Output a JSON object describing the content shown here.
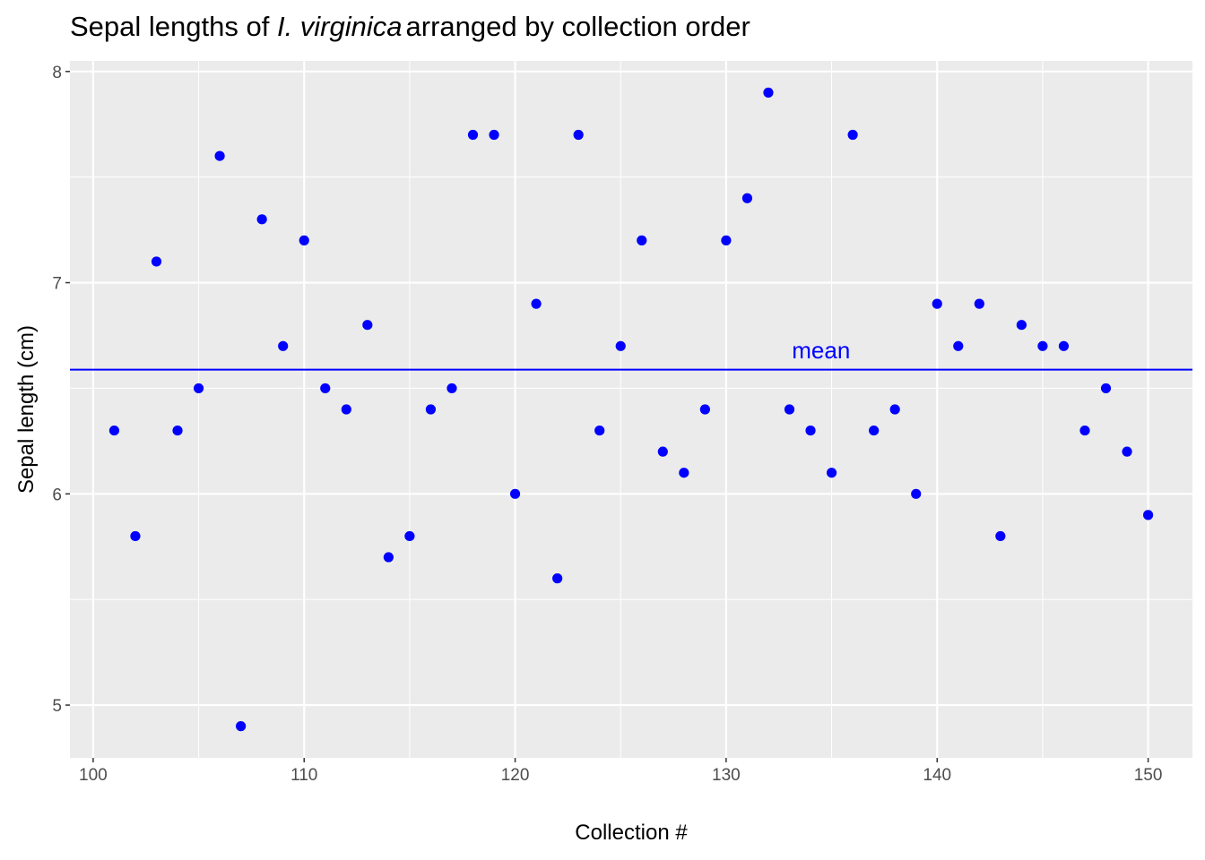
{
  "chart_data": {
    "type": "scatter",
    "title_prefix": "Sepal lengths of ",
    "title_italic": "I. virginica",
    "title_suffix": "arranged by collection order",
    "xlabel": "Collection #",
    "ylabel": "Sepal length (cm)",
    "xlim": [
      98.9,
      152.1
    ],
    "ylim": [
      4.75,
      8.05
    ],
    "x_ticks": [
      100,
      110,
      120,
      130,
      140,
      150
    ],
    "y_ticks": [
      5,
      6,
      7,
      8
    ],
    "grid": true,
    "panel_color": "#ebebeb",
    "point_color": "#0000ff",
    "mean": 6.588,
    "mean_label": "mean",
    "mean_label_x": 134.5,
    "mean_label_y": 6.68,
    "x": [
      101,
      102,
      103,
      104,
      105,
      106,
      107,
      108,
      109,
      110,
      111,
      112,
      113,
      114,
      115,
      116,
      117,
      118,
      119,
      120,
      121,
      122,
      123,
      124,
      125,
      126,
      127,
      128,
      129,
      130,
      131,
      132,
      133,
      134,
      135,
      136,
      137,
      138,
      139,
      140,
      141,
      142,
      143,
      144,
      145,
      146,
      147,
      148,
      149,
      150
    ],
    "y": [
      6.3,
      5.8,
      7.1,
      6.3,
      6.5,
      7.6,
      4.9,
      7.3,
      6.7,
      7.2,
      6.5,
      6.4,
      6.8,
      5.7,
      5.8,
      6.4,
      6.5,
      7.7,
      7.7,
      6.0,
      6.9,
      5.6,
      7.7,
      6.3,
      6.7,
      7.2,
      6.2,
      6.1,
      6.4,
      7.2,
      7.4,
      7.9,
      6.4,
      6.3,
      6.1,
      7.7,
      6.3,
      6.4,
      6.0,
      6.9,
      6.7,
      6.9,
      5.8,
      6.8,
      6.7,
      6.7,
      6.3,
      6.5,
      6.2,
      5.9
    ]
  }
}
